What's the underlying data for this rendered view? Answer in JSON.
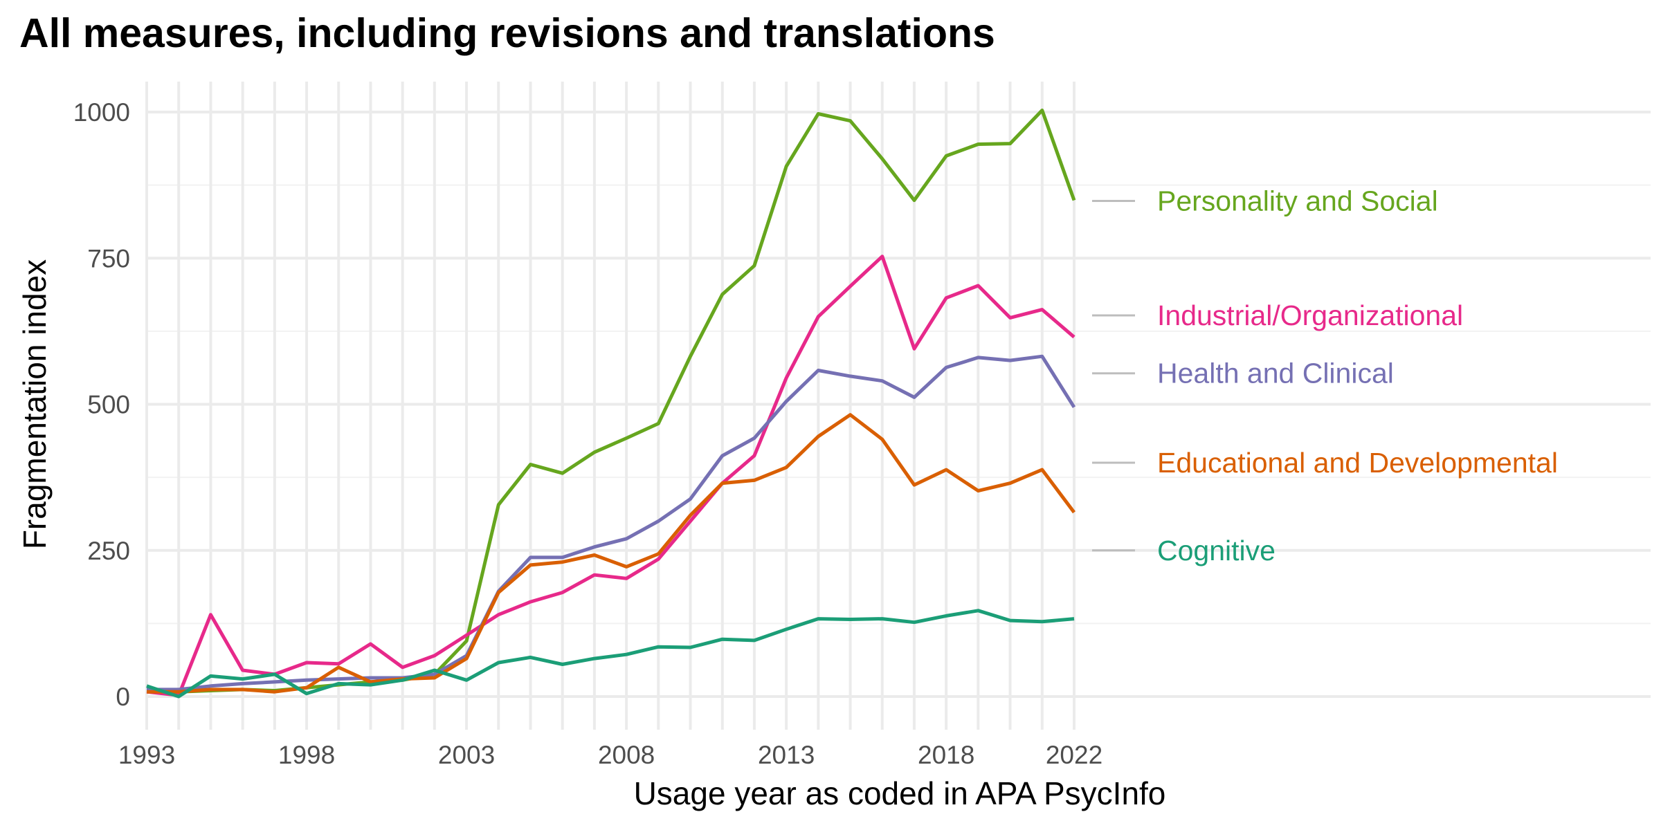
{
  "chart_data": {
    "type": "line",
    "title": "All measures, including revisions and translations",
    "xlabel": "Usage year as coded in APA PsycInfo",
    "ylabel": "Fragmentation index",
    "xlim": [
      1993,
      2022
    ],
    "ylim": [
      0,
      1000
    ],
    "x_ticks": [
      1993,
      1998,
      2003,
      2008,
      2013,
      2018,
      2022
    ],
    "y_ticks": [
      0,
      250,
      500,
      750,
      1000
    ],
    "grid": true,
    "legend": "direct labels at right end of lines",
    "x": [
      1993,
      1994,
      1995,
      1996,
      1997,
      1998,
      1999,
      2000,
      2001,
      2002,
      2003,
      2004,
      2005,
      2006,
      2007,
      2008,
      2009,
      2010,
      2011,
      2012,
      2013,
      2014,
      2015,
      2016,
      2017,
      2018,
      2019,
      2020,
      2021,
      2022
    ],
    "series": [
      {
        "name": "Personality and Social",
        "color": "#66a61e",
        "values": [
          10,
          8,
          10,
          12,
          10,
          15,
          20,
          25,
          28,
          38,
          95,
          328,
          397,
          382,
          418,
          442,
          467,
          582,
          688,
          737,
          907,
          997,
          985,
          920,
          849,
          925,
          945,
          946,
          1003,
          849
        ]
      },
      {
        "name": "Industrial/Organizational",
        "color": "#e7298a",
        "values": [
          8,
          2,
          140,
          45,
          38,
          58,
          56,
          90,
          50,
          70,
          105,
          140,
          162,
          178,
          208,
          202,
          235,
          300,
          365,
          412,
          545,
          650,
          702,
          753,
          595,
          682,
          703,
          648,
          662,
          615
        ]
      },
      {
        "name": "Health and Clinical",
        "color": "#7570b3",
        "values": [
          12,
          12,
          18,
          22,
          25,
          28,
          30,
          32,
          32,
          38,
          70,
          180,
          238,
          238,
          256,
          270,
          300,
          338,
          412,
          442,
          505,
          558,
          548,
          540,
          512,
          563,
          580,
          575,
          582,
          495
        ]
      },
      {
        "name": "Educational and Developmental",
        "color": "#d95f02",
        "values": [
          8,
          8,
          12,
          12,
          8,
          15,
          50,
          25,
          30,
          32,
          65,
          178,
          225,
          230,
          242,
          222,
          244,
          310,
          365,
          370,
          392,
          445,
          482,
          440,
          362,
          388,
          352,
          365,
          388,
          315
        ]
      },
      {
        "name": "Cognitive",
        "color": "#1b9e77",
        "values": [
          18,
          0,
          35,
          30,
          38,
          5,
          22,
          20,
          28,
          45,
          28,
          58,
          67,
          55,
          65,
          72,
          85,
          84,
          98,
          96,
          115,
          133,
          132,
          133,
          127,
          138,
          147,
          130,
          128,
          133
        ]
      }
    ]
  }
}
